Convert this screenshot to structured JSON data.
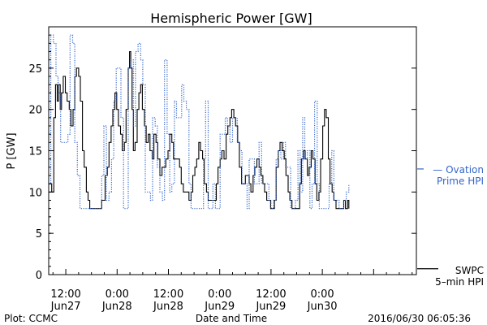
{
  "chart_data": {
    "type": "line",
    "title": "Hemispheric Power [GW]",
    "ylabel": "P [GW]",
    "xlabel": "Date and Time",
    "ylim": [
      0,
      30
    ],
    "yticks": [
      0,
      5,
      10,
      15,
      20,
      25
    ],
    "x_range_hours": [
      -16,
      70
    ],
    "x_ticks": [
      {
        "hour": -12,
        "time": "12:00",
        "date": "Jun27"
      },
      {
        "hour": 0,
        "time": "0:00",
        "date": "Jun28"
      },
      {
        "hour": 12,
        "time": "12:00",
        "date": "Jun28"
      },
      {
        "hour": 24,
        "time": "0:00",
        "date": "Jun29"
      },
      {
        "hour": 36,
        "time": "12:00",
        "date": "Jun29"
      },
      {
        "hour": 48,
        "time": "0:00",
        "date": "Jun30"
      }
    ],
    "grid": false,
    "series": [
      {
        "name": "SWPC 5-min HPI",
        "color": "#000000",
        "style": "solid",
        "points": [
          [
            -16,
            11
          ],
          [
            -15.3,
            10
          ],
          [
            -14.8,
            19
          ],
          [
            -14.4,
            23
          ],
          [
            -14,
            21
          ],
          [
            -13.7,
            23
          ],
          [
            -13.3,
            20
          ],
          [
            -13,
            22
          ],
          [
            -12.6,
            24
          ],
          [
            -12.1,
            22
          ],
          [
            -11.7,
            21
          ],
          [
            -11.2,
            20
          ],
          [
            -10.8,
            18
          ],
          [
            -10.3,
            20
          ],
          [
            -9.9,
            24
          ],
          [
            -9.5,
            25
          ],
          [
            -9,
            24
          ],
          [
            -8.6,
            21
          ],
          [
            -8.1,
            15
          ],
          [
            -7.7,
            13
          ],
          [
            -7.2,
            10
          ],
          [
            -6.8,
            9
          ],
          [
            -6.4,
            8
          ],
          [
            -5.9,
            8
          ],
          [
            -5.4,
            8
          ],
          [
            -5,
            8
          ],
          [
            -4.5,
            8
          ],
          [
            -4.1,
            8
          ],
          [
            -3.6,
            9
          ],
          [
            -3.2,
            9
          ],
          [
            -2.8,
            12
          ],
          [
            -2.3,
            13
          ],
          [
            -1.9,
            16
          ],
          [
            -1.4,
            18
          ],
          [
            -1,
            20
          ],
          [
            -0.5,
            22
          ],
          [
            -0.1,
            20
          ],
          [
            0.3,
            18
          ],
          [
            0.8,
            17
          ],
          [
            1.2,
            15
          ],
          [
            1.7,
            16
          ],
          [
            2.1,
            20
          ],
          [
            2.6,
            25
          ],
          [
            2.9,
            27
          ],
          [
            3.2,
            25
          ],
          [
            3.5,
            20
          ],
          [
            3.8,
            15
          ],
          [
            4.2,
            16
          ],
          [
            4.7,
            20
          ],
          [
            5.1,
            22
          ],
          [
            5.5,
            23
          ],
          [
            5.9,
            20
          ],
          [
            6.4,
            18
          ],
          [
            6.8,
            16
          ],
          [
            7.3,
            17
          ],
          [
            7.7,
            15
          ],
          [
            8.2,
            14
          ],
          [
            8.6,
            17
          ],
          [
            9.1,
            16
          ],
          [
            9.5,
            14
          ],
          [
            10,
            12
          ],
          [
            10.5,
            13
          ],
          [
            11,
            13
          ],
          [
            11.4,
            14
          ],
          [
            11.9,
            15
          ],
          [
            12.3,
            17
          ],
          [
            12.8,
            16
          ],
          [
            13.2,
            14
          ],
          [
            13.7,
            14
          ],
          [
            14.1,
            14
          ],
          [
            14.6,
            13
          ],
          [
            15,
            11
          ],
          [
            15.5,
            10
          ],
          [
            15.9,
            10
          ],
          [
            16.4,
            10
          ],
          [
            16.8,
            9
          ],
          [
            17.3,
            10
          ],
          [
            17.7,
            12
          ],
          [
            18.2,
            13
          ],
          [
            18.6,
            14
          ],
          [
            19.1,
            16
          ],
          [
            19.5,
            15
          ],
          [
            20,
            14
          ],
          [
            20.4,
            11
          ],
          [
            20.9,
            10
          ],
          [
            21.3,
            9
          ],
          [
            21.8,
            9
          ],
          [
            22.2,
            9
          ],
          [
            22.7,
            9
          ],
          [
            23.2,
            11
          ],
          [
            23.6,
            13
          ],
          [
            24.1,
            14
          ],
          [
            24.5,
            15
          ],
          [
            25,
            14
          ],
          [
            25.5,
            17
          ],
          [
            25.9,
            18
          ],
          [
            26.4,
            19
          ],
          [
            26.8,
            20
          ],
          [
            27.3,
            19
          ],
          [
            27.7,
            18
          ],
          [
            28.2,
            16
          ],
          [
            28.6,
            13
          ],
          [
            29.1,
            11
          ],
          [
            29.5,
            11
          ],
          [
            30,
            12
          ],
          [
            30.4,
            12
          ],
          [
            30.9,
            11
          ],
          [
            31.3,
            10
          ],
          [
            31.8,
            12
          ],
          [
            32.2,
            13
          ],
          [
            32.7,
            14
          ],
          [
            33.2,
            13
          ],
          [
            33.6,
            12
          ],
          [
            34.1,
            11
          ],
          [
            34.5,
            10
          ],
          [
            35,
            9
          ],
          [
            35.4,
            9
          ],
          [
            35.9,
            8
          ],
          [
            36.3,
            8
          ],
          [
            36.8,
            9
          ],
          [
            37.2,
            13
          ],
          [
            37.7,
            15
          ],
          [
            38.1,
            16
          ],
          [
            38.6,
            15
          ],
          [
            39.1,
            14
          ],
          [
            39.5,
            12
          ],
          [
            40,
            10
          ],
          [
            40.4,
            9
          ],
          [
            40.9,
            8
          ],
          [
            41.3,
            8
          ],
          [
            41.8,
            8
          ],
          [
            42.2,
            8
          ],
          [
            42.7,
            11
          ],
          [
            43.1,
            14
          ],
          [
            43.6,
            15
          ],
          [
            44,
            14
          ],
          [
            44.5,
            12
          ],
          [
            44.9,
            13
          ],
          [
            45.4,
            15
          ],
          [
            45.8,
            14
          ],
          [
            46.3,
            11
          ],
          [
            46.7,
            9
          ],
          [
            47.2,
            10
          ],
          [
            47.6,
            14
          ],
          [
            48.1,
            18
          ],
          [
            48.5,
            20
          ],
          [
            48.9,
            19
          ],
          [
            49.4,
            14
          ],
          [
            49.8,
            11
          ],
          [
            50.3,
            10
          ],
          [
            50.7,
            9
          ],
          [
            51.2,
            8
          ],
          [
            51.6,
            8
          ],
          [
            52.1,
            8
          ],
          [
            52.5,
            8
          ],
          [
            53,
            9
          ],
          [
            53.4,
            8
          ],
          [
            53.9,
            9
          ],
          [
            54.2,
            8
          ]
        ]
      },
      {
        "name": "Ovation Prime HPI",
        "color": "#3366cc",
        "style": "dotted",
        "points": [
          [
            -15.9,
            11
          ],
          [
            -15.5,
            29
          ],
          [
            -14.9,
            28
          ],
          [
            -14.3,
            24
          ],
          [
            -13.8,
            22
          ],
          [
            -13.2,
            16
          ],
          [
            -12.7,
            16
          ],
          [
            -12.1,
            16
          ],
          [
            -11.5,
            17
          ],
          [
            -11,
            29
          ],
          [
            -10.4,
            28
          ],
          [
            -9.9,
            16
          ],
          [
            -9.3,
            12
          ],
          [
            -8.7,
            8
          ],
          [
            -8.2,
            8
          ],
          [
            -7.6,
            8
          ],
          [
            -7,
            8
          ],
          [
            -6.5,
            8
          ],
          [
            -5.9,
            8
          ],
          [
            -5.3,
            8
          ],
          [
            -4.8,
            8
          ],
          [
            -4.2,
            8
          ],
          [
            -3.6,
            12
          ],
          [
            -3.1,
            18
          ],
          [
            -2.5,
            9
          ],
          [
            -1.9,
            10
          ],
          [
            -1.3,
            14
          ],
          [
            -0.8,
            21
          ],
          [
            -0.2,
            25
          ],
          [
            0.4,
            25
          ],
          [
            0.9,
            19
          ],
          [
            1.5,
            8
          ],
          [
            2.1,
            8
          ],
          [
            2.6,
            25
          ],
          [
            3.2,
            26
          ],
          [
            3.8,
            18
          ],
          [
            4.3,
            27
          ],
          [
            4.9,
            28
          ],
          [
            5.5,
            26
          ],
          [
            6,
            23
          ],
          [
            6.6,
            10
          ],
          [
            7.2,
            10
          ],
          [
            7.8,
            9
          ],
          [
            8.3,
            19
          ],
          [
            8.9,
            18
          ],
          [
            9.4,
            13
          ],
          [
            10,
            10
          ],
          [
            10.6,
            9
          ],
          [
            11.1,
            26
          ],
          [
            11.7,
            17
          ],
          [
            12.3,
            10
          ],
          [
            12.8,
            11
          ],
          [
            13.4,
            21
          ],
          [
            13.9,
            19
          ],
          [
            14.5,
            19
          ],
          [
            15.1,
            23
          ],
          [
            15.6,
            21
          ],
          [
            16.2,
            20
          ],
          [
            16.8,
            11
          ],
          [
            17.3,
            8
          ],
          [
            17.9,
            8
          ],
          [
            18.5,
            8
          ],
          [
            19,
            8
          ],
          [
            19.6,
            8
          ],
          [
            20.2,
            14
          ],
          [
            20.7,
            21
          ],
          [
            21.3,
            8
          ],
          [
            21.9,
            8
          ],
          [
            22.4,
            11
          ],
          [
            23,
            8
          ],
          [
            23.6,
            8
          ],
          [
            24.1,
            17
          ],
          [
            24.7,
            17
          ],
          [
            25.3,
            19
          ],
          [
            25.8,
            18
          ],
          [
            26.4,
            16
          ],
          [
            27,
            19
          ],
          [
            27.5,
            19
          ],
          [
            28.1,
            16
          ],
          [
            28.7,
            15
          ],
          [
            29.2,
            11
          ],
          [
            29.8,
            11
          ],
          [
            30.4,
            8
          ],
          [
            30.9,
            14
          ],
          [
            31.5,
            14
          ],
          [
            32.1,
            11
          ],
          [
            32.6,
            11
          ],
          [
            33.2,
            16
          ],
          [
            33.8,
            11
          ],
          [
            34.3,
            11
          ],
          [
            34.9,
            11
          ],
          [
            35.5,
            9
          ],
          [
            36,
            8
          ],
          [
            36.6,
            9
          ],
          [
            37.2,
            14
          ],
          [
            37.7,
            15
          ],
          [
            38.3,
            14
          ],
          [
            38.9,
            16
          ],
          [
            39.4,
            13
          ],
          [
            40,
            13
          ],
          [
            40.6,
            8
          ],
          [
            41.1,
            8
          ],
          [
            41.7,
            9
          ],
          [
            42.3,
            15
          ],
          [
            42.8,
            10
          ],
          [
            43.4,
            19
          ],
          [
            43.9,
            14
          ],
          [
            44.5,
            15
          ],
          [
            45.1,
            8
          ],
          [
            45.6,
            11
          ],
          [
            46.2,
            21
          ],
          [
            46.8,
            11
          ],
          [
            47.3,
            8
          ],
          [
            47.9,
            8
          ],
          [
            48.5,
            8
          ],
          [
            49,
            8
          ],
          [
            49.6,
            11
          ],
          [
            50.2,
            15
          ],
          [
            50.7,
            9
          ],
          [
            51.3,
            9
          ],
          [
            51.9,
            8
          ],
          [
            52.4,
            8
          ],
          [
            53,
            9
          ],
          [
            53.6,
            10
          ],
          [
            54.2,
            11
          ]
        ]
      }
    ],
    "legend": [
      {
        "series": "Ovation Prime HPI",
        "value_gw": 12.4,
        "label": [
          "— Ovation",
          "Prime HPI"
        ]
      },
      {
        "series": "SWPC 5-min HPI",
        "value_gw": 1.5,
        "label": [
          "SWPC",
          "5–min HPI"
        ]
      }
    ]
  },
  "footer": {
    "plot_credit": "Plot: CCMC",
    "timestamp": "2016/06/30 06:05:36"
  }
}
